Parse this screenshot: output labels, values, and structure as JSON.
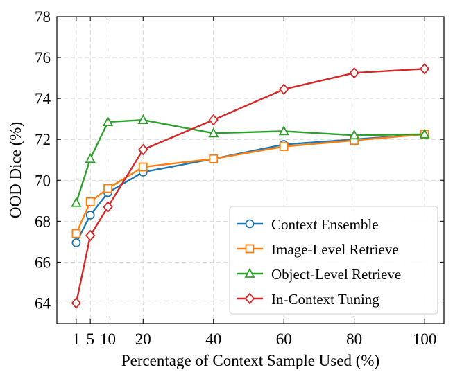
{
  "chart_data": {
    "type": "line",
    "title": "",
    "xlabel": "Percentage of Context Sample Used (%)",
    "ylabel": "OOD Dice (%)",
    "x": [
      1,
      5,
      10,
      20,
      40,
      60,
      80,
      100
    ],
    "xticks": [
      1,
      5,
      10,
      20,
      40,
      60,
      80,
      100
    ],
    "yticks": [
      64,
      66,
      68,
      70,
      72,
      74,
      76,
      78
    ],
    "xlim": [
      -4.5,
      105.5
    ],
    "ylim": [
      63,
      78
    ],
    "grid": true,
    "legend_position": "lower-right",
    "series": [
      {
        "name": "Context Ensemble",
        "color": "#1f77b4",
        "marker": "circle",
        "values": [
          66.95,
          68.3,
          69.4,
          70.4,
          71.05,
          71.75,
          72.0,
          72.25
        ]
      },
      {
        "name": "Image-Level Retrieve",
        "color": "#ff7f0e",
        "marker": "square",
        "values": [
          67.4,
          68.95,
          69.6,
          70.65,
          71.05,
          71.65,
          71.95,
          72.25
        ]
      },
      {
        "name": "Object-Level Retrieve",
        "color": "#2ca02c",
        "marker": "triangle",
        "values": [
          68.9,
          71.05,
          72.85,
          72.95,
          72.3,
          72.4,
          72.2,
          72.25
        ]
      },
      {
        "name": "In-Context Tuning",
        "color": "#d62728",
        "marker": "diamond",
        "values": [
          64.0,
          67.3,
          68.7,
          71.5,
          72.95,
          74.45,
          75.25,
          75.45
        ]
      }
    ]
  }
}
